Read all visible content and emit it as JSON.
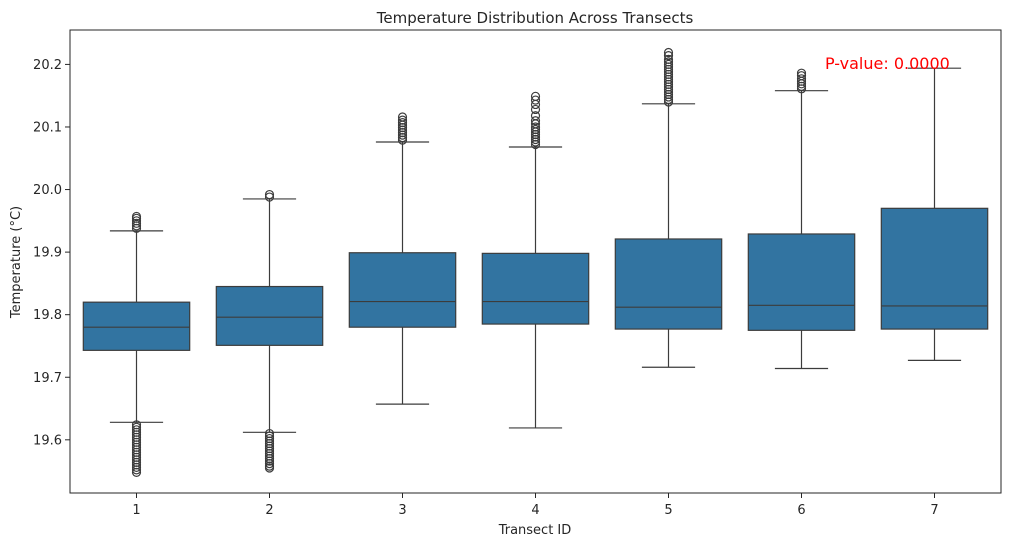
{
  "chart_data": {
    "type": "box",
    "title": "Temperature Distribution Across Transects",
    "xlabel": "Transect ID",
    "ylabel": "Temperature (°C)",
    "categories": [
      "1",
      "2",
      "3",
      "4",
      "5",
      "6",
      "7"
    ],
    "ylim": [
      19.515,
      20.255
    ],
    "yticks": [
      19.6,
      19.7,
      19.8,
      19.9,
      20.0,
      20.1,
      20.2
    ],
    "ytick_labels": [
      "19.6",
      "19.7",
      "19.8",
      "19.9",
      "20.0",
      "20.1",
      "20.2"
    ],
    "grid": false,
    "box_color": "#3274a1",
    "line_color": "#3c3c3c",
    "boxes": [
      {
        "category": "1",
        "whisker_low": 19.628,
        "q1": 19.743,
        "median": 19.78,
        "q3": 19.82,
        "whisker_high": 19.934,
        "outliers_low": [
          19.548,
          19.552,
          19.556,
          19.56,
          19.564,
          19.568,
          19.572,
          19.576,
          19.58,
          19.584,
          19.588,
          19.592,
          19.596,
          19.6,
          19.604,
          19.608,
          19.612,
          19.616,
          19.62,
          19.624
        ],
        "outliers_high": [
          19.938,
          19.942,
          19.946,
          19.95,
          19.954,
          19.957
        ]
      },
      {
        "category": "2",
        "whisker_low": 19.612,
        "q1": 19.751,
        "median": 19.796,
        "q3": 19.845,
        "whisker_high": 19.985,
        "outliers_low": [
          19.555,
          19.558,
          19.562,
          19.566,
          19.57,
          19.574,
          19.578,
          19.582,
          19.586,
          19.59,
          19.594,
          19.598,
          19.602,
          19.606,
          19.61
        ],
        "outliers_high": [
          19.988,
          19.992
        ]
      },
      {
        "category": "3",
        "whisker_low": 19.657,
        "q1": 19.78,
        "median": 19.821,
        "q3": 19.899,
        "whisker_high": 20.076,
        "outliers_low": [],
        "outliers_high": [
          20.079,
          20.083,
          20.087,
          20.091,
          20.095,
          20.099,
          20.103,
          20.107,
          20.111,
          20.116
        ]
      },
      {
        "category": "4",
        "whisker_low": 19.619,
        "q1": 19.785,
        "median": 19.821,
        "q3": 19.898,
        "whisker_high": 20.068,
        "outliers_low": [],
        "outliers_high": [
          20.072,
          20.076,
          20.08,
          20.084,
          20.088,
          20.092,
          20.096,
          20.1,
          20.105,
          20.11,
          20.118,
          20.128,
          20.136,
          20.143,
          20.149
        ]
      },
      {
        "category": "5",
        "whisker_low": 19.716,
        "q1": 19.777,
        "median": 19.812,
        "q3": 19.921,
        "whisker_high": 20.137,
        "outliers_low": [],
        "outliers_high": [
          20.14,
          20.144,
          20.148,
          20.152,
          20.156,
          20.16,
          20.164,
          20.168,
          20.172,
          20.176,
          20.18,
          20.184,
          20.188,
          20.192,
          20.196,
          20.2,
          20.204,
          20.208,
          20.214,
          20.219
        ]
      },
      {
        "category": "6",
        "whisker_low": 19.714,
        "q1": 19.775,
        "median": 19.815,
        "q3": 19.929,
        "whisker_high": 20.158,
        "outliers_low": [],
        "outliers_high": [
          20.161,
          20.165,
          20.169,
          20.173,
          20.177,
          20.182,
          20.186
        ]
      },
      {
        "category": "7",
        "whisker_low": 19.727,
        "q1": 19.777,
        "median": 19.814,
        "q3": 19.97,
        "whisker_high": 20.194,
        "outliers_low": [],
        "outliers_high": []
      }
    ],
    "annotation": {
      "text": "P-value: 0.0000",
      "color": "#ff0000"
    }
  }
}
